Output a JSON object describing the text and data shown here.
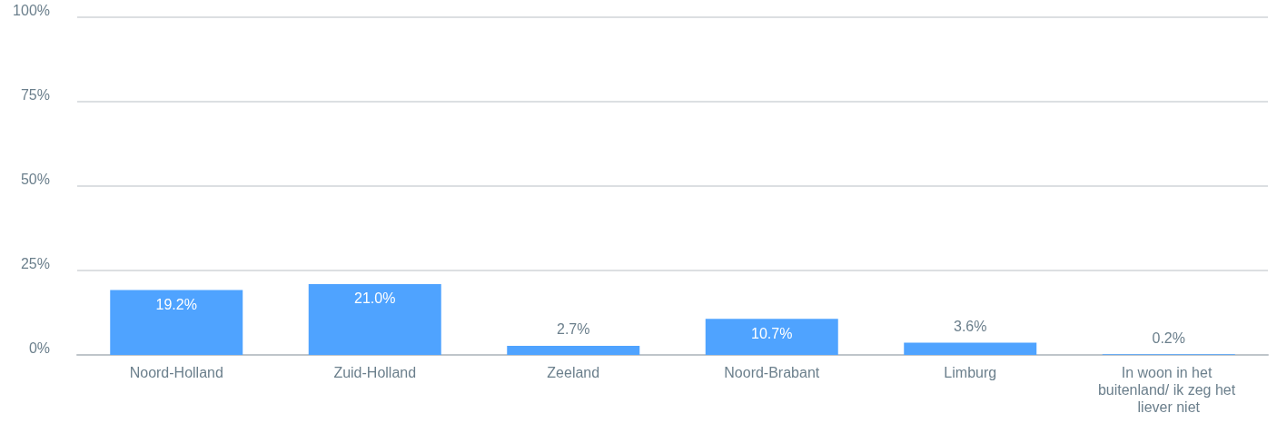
{
  "chart_data": {
    "type": "bar",
    "categories": [
      "Noord-Holland",
      "Zuid-Holland",
      "Zeeland",
      "Noord-Brabant",
      "Limburg",
      "In woon in het buitenland/ ik zeg het liever niet"
    ],
    "values": [
      19.2,
      21.0,
      2.7,
      10.7,
      3.6,
      0.2
    ],
    "value_labels": [
      "19.2%",
      "21.0%",
      "2.7%",
      "10.7%",
      "3.6%",
      "0.2%"
    ],
    "color": "#4fa3ff",
    "ylim": [
      0,
      100
    ],
    "yticks": [
      {
        "value": 0,
        "label": "0%"
      },
      {
        "value": 25,
        "label": "25%"
      },
      {
        "value": 50,
        "label": "50%"
      },
      {
        "value": 75,
        "label": "75%"
      },
      {
        "value": 100,
        "label": "100%"
      }
    ],
    "grid": "y"
  }
}
